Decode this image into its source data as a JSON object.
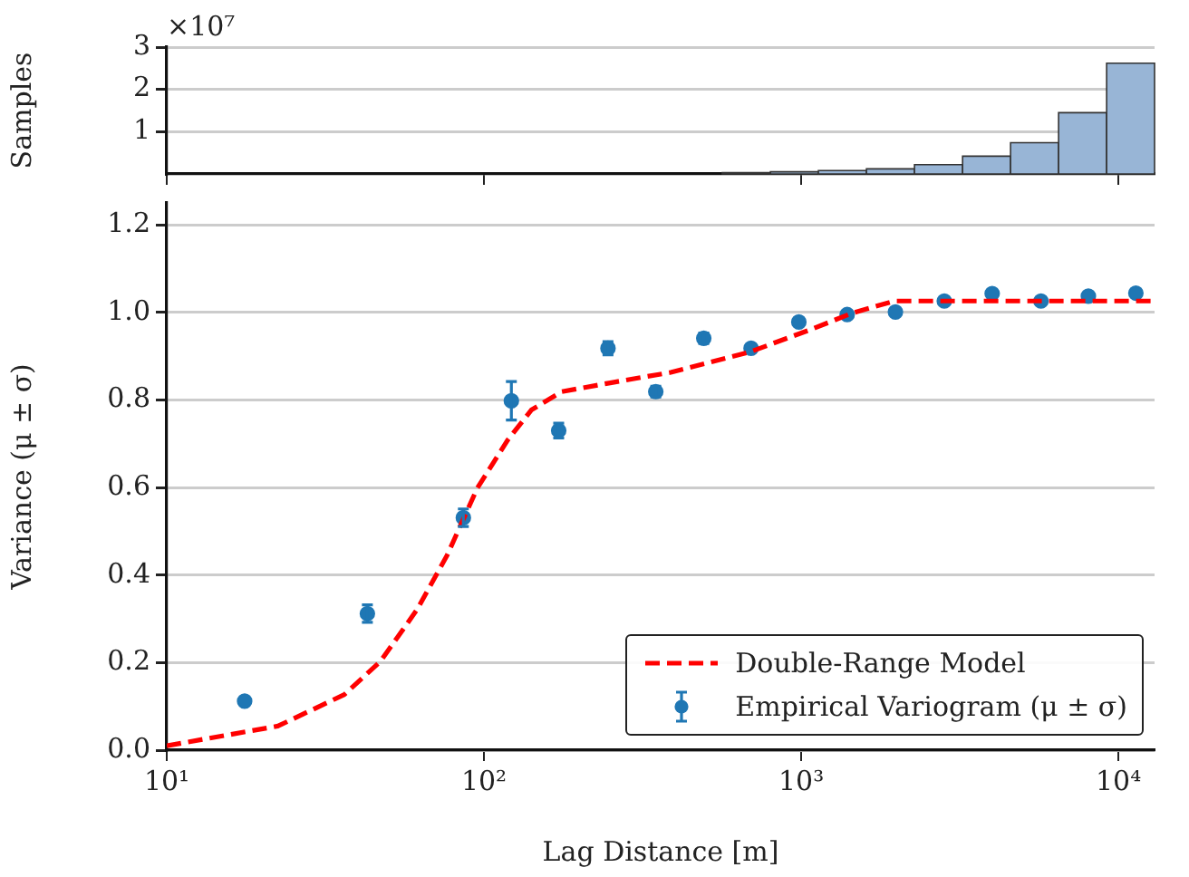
{
  "chart_data": [
    {
      "type": "histogram",
      "ylabel": "Samples",
      "annotations": [
        "×10⁷"
      ],
      "log": "x",
      "grid": "y",
      "tick_labels": "y",
      "color": "#98b5d6",
      "bins": [
        564,
        800,
        1133,
        1606,
        2276,
        3227,
        4571,
        6477,
        9180,
        13000
      ],
      "values": [
        0.03,
        0.05,
        0.08,
        0.12,
        0.22,
        0.42,
        0.74,
        1.45,
        2.62
      ],
      "xlim": [
        10,
        13000
      ],
      "xticks": [
        {
          "value": 10,
          "label": null
        },
        {
          "value": 100,
          "label": null
        },
        {
          "value": 1000,
          "label": null
        },
        {
          "value": 10000,
          "label": null
        }
      ],
      "ylim": [
        0,
        3
      ],
      "yticks": [
        1,
        2,
        3
      ]
    },
    {
      "type": "scatter",
      "xlabel": "Lag Distance [m]",
      "ylabel": "Variance (μ ± σ)",
      "log": "x",
      "grid": "y",
      "legend": "bottom right",
      "xlim": [
        10,
        13000
      ],
      "xticks": [
        {
          "value": 10,
          "label": "10¹"
        },
        {
          "value": 100,
          "label": "10²"
        },
        {
          "value": 1000,
          "label": "10³"
        },
        {
          "value": 10000,
          "label": "10⁴"
        }
      ],
      "ylim": [
        0,
        1.25
      ],
      "yticks": [
        {
          "value": 0,
          "label": "0.0"
        },
        0.2,
        0.4,
        0.6,
        0.8,
        {
          "value": 1,
          "label": "1.0"
        },
        1.2
      ],
      "series": [
        {
          "type": "line",
          "name": "Double-Range Model",
          "color": "#ff0000",
          "line_style": "dashed",
          "marker": "none",
          "x": [
            10,
            22.4,
            36.3,
            47.2,
            61.5,
            76.5,
            95.2,
            118.7,
            141,
            176,
            250,
            388,
            685,
            1064,
            1445,
            1964,
            13000
          ],
          "values": [
            0.01,
            0.055,
            0.127,
            0.203,
            0.321,
            0.445,
            0.598,
            0.708,
            0.777,
            0.819,
            0.839,
            0.863,
            0.909,
            0.96,
            0.998,
            1.026,
            1.026
          ]
        },
        {
          "type": "scatter",
          "name": "Empirical Variogram (μ ± σ)",
          "color": "#1f77b4",
          "marker": "circle",
          "x": [
            17.6,
            42.9,
            86.1,
            122,
            172,
            246,
            348,
            493,
            695,
            983,
            1396,
            1982,
            2826,
            4000,
            5700,
            8040,
            11350
          ],
          "values": [
            0.112,
            0.312,
            0.531,
            0.798,
            0.73,
            0.918,
            0.819,
            0.941,
            0.918,
            0.978,
            0.995,
            1.001,
            1.026,
            1.043,
            1.026,
            1.037,
            1.044
          ],
          "errors": [
            null,
            0.02,
            0.02,
            0.044,
            0.017,
            0.015,
            0.012,
            0.012,
            null,
            null,
            null,
            null,
            null,
            null,
            null,
            null,
            null
          ]
        }
      ]
    }
  ]
}
